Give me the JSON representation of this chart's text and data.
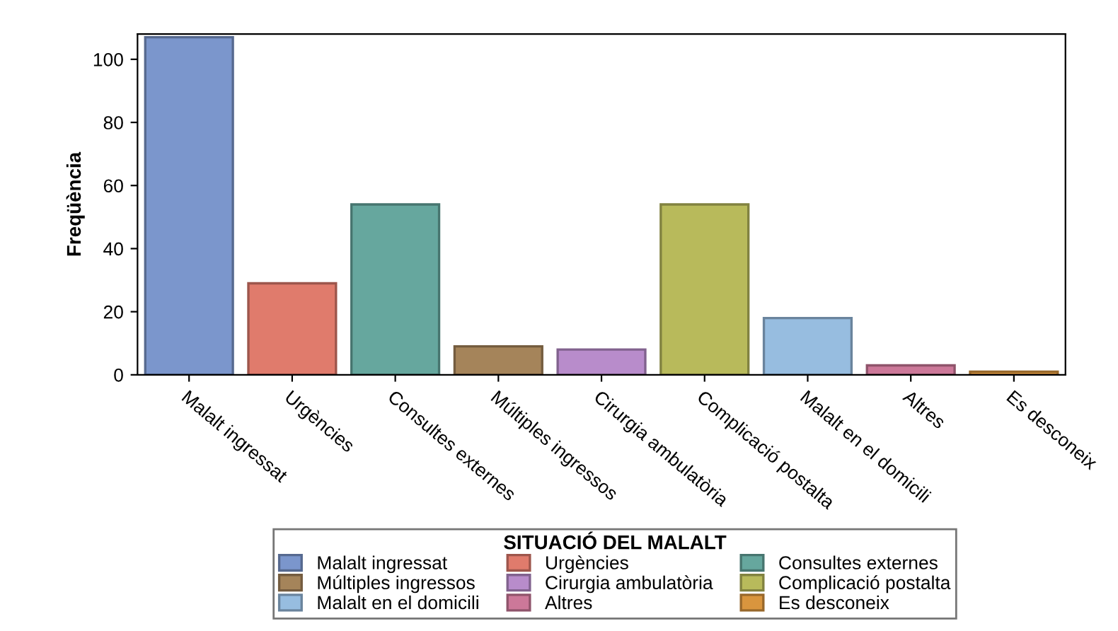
{
  "chart_data": {
    "type": "bar",
    "categories": [
      "Malalt ingressat",
      "Urgències",
      "Consultes externes",
      "Múltiples ingressos",
      "Cirurgia ambulatòria",
      "Complicació postalta",
      "Malalt en el domicili",
      "Altres",
      "Es desconeix"
    ],
    "series": [
      {
        "name": "Malalt ingressat",
        "color": "#7b96cc",
        "values": [
          107,
          null,
          null,
          null,
          null,
          null,
          null,
          null,
          null
        ]
      },
      {
        "name": "Urgències",
        "color": "#e07b6c",
        "values": [
          null,
          29,
          null,
          null,
          null,
          null,
          null,
          null,
          null
        ]
      },
      {
        "name": "Consultes externes",
        "color": "#66a79e",
        "values": [
          null,
          null,
          54,
          null,
          null,
          null,
          null,
          null,
          null
        ]
      },
      {
        "name": "Múltiples ingressos",
        "color": "#a5845a",
        "values": [
          null,
          null,
          null,
          9,
          null,
          null,
          null,
          null,
          null
        ]
      },
      {
        "name": "Cirurgia ambulatòria",
        "color": "#b88ccb",
        "values": [
          null,
          null,
          null,
          null,
          8,
          null,
          null,
          null,
          null
        ]
      },
      {
        "name": "Complicació postalta",
        "color": "#b8ba5b",
        "values": [
          null,
          null,
          null,
          null,
          null,
          54,
          null,
          null,
          null
        ]
      },
      {
        "name": "Malalt en el domicili",
        "color": "#97bde0",
        "values": [
          null,
          null,
          null,
          null,
          null,
          null,
          18,
          null,
          null
        ]
      },
      {
        "name": "Altres",
        "color": "#cc7899",
        "values": [
          null,
          null,
          null,
          null,
          null,
          null,
          null,
          3,
          null
        ]
      },
      {
        "name": "Es desconeix",
        "color": "#d9953e",
        "values": [
          null,
          null,
          null,
          null,
          null,
          null,
          null,
          null,
          1
        ]
      }
    ],
    "ylabel": "Freqüència",
    "legend_title": "SITUACIÓ DEL MALALT",
    "ylim": [
      0,
      108
    ],
    "yticks": [
      0,
      20,
      40,
      60,
      80,
      100
    ],
    "legend": "bottom"
  }
}
